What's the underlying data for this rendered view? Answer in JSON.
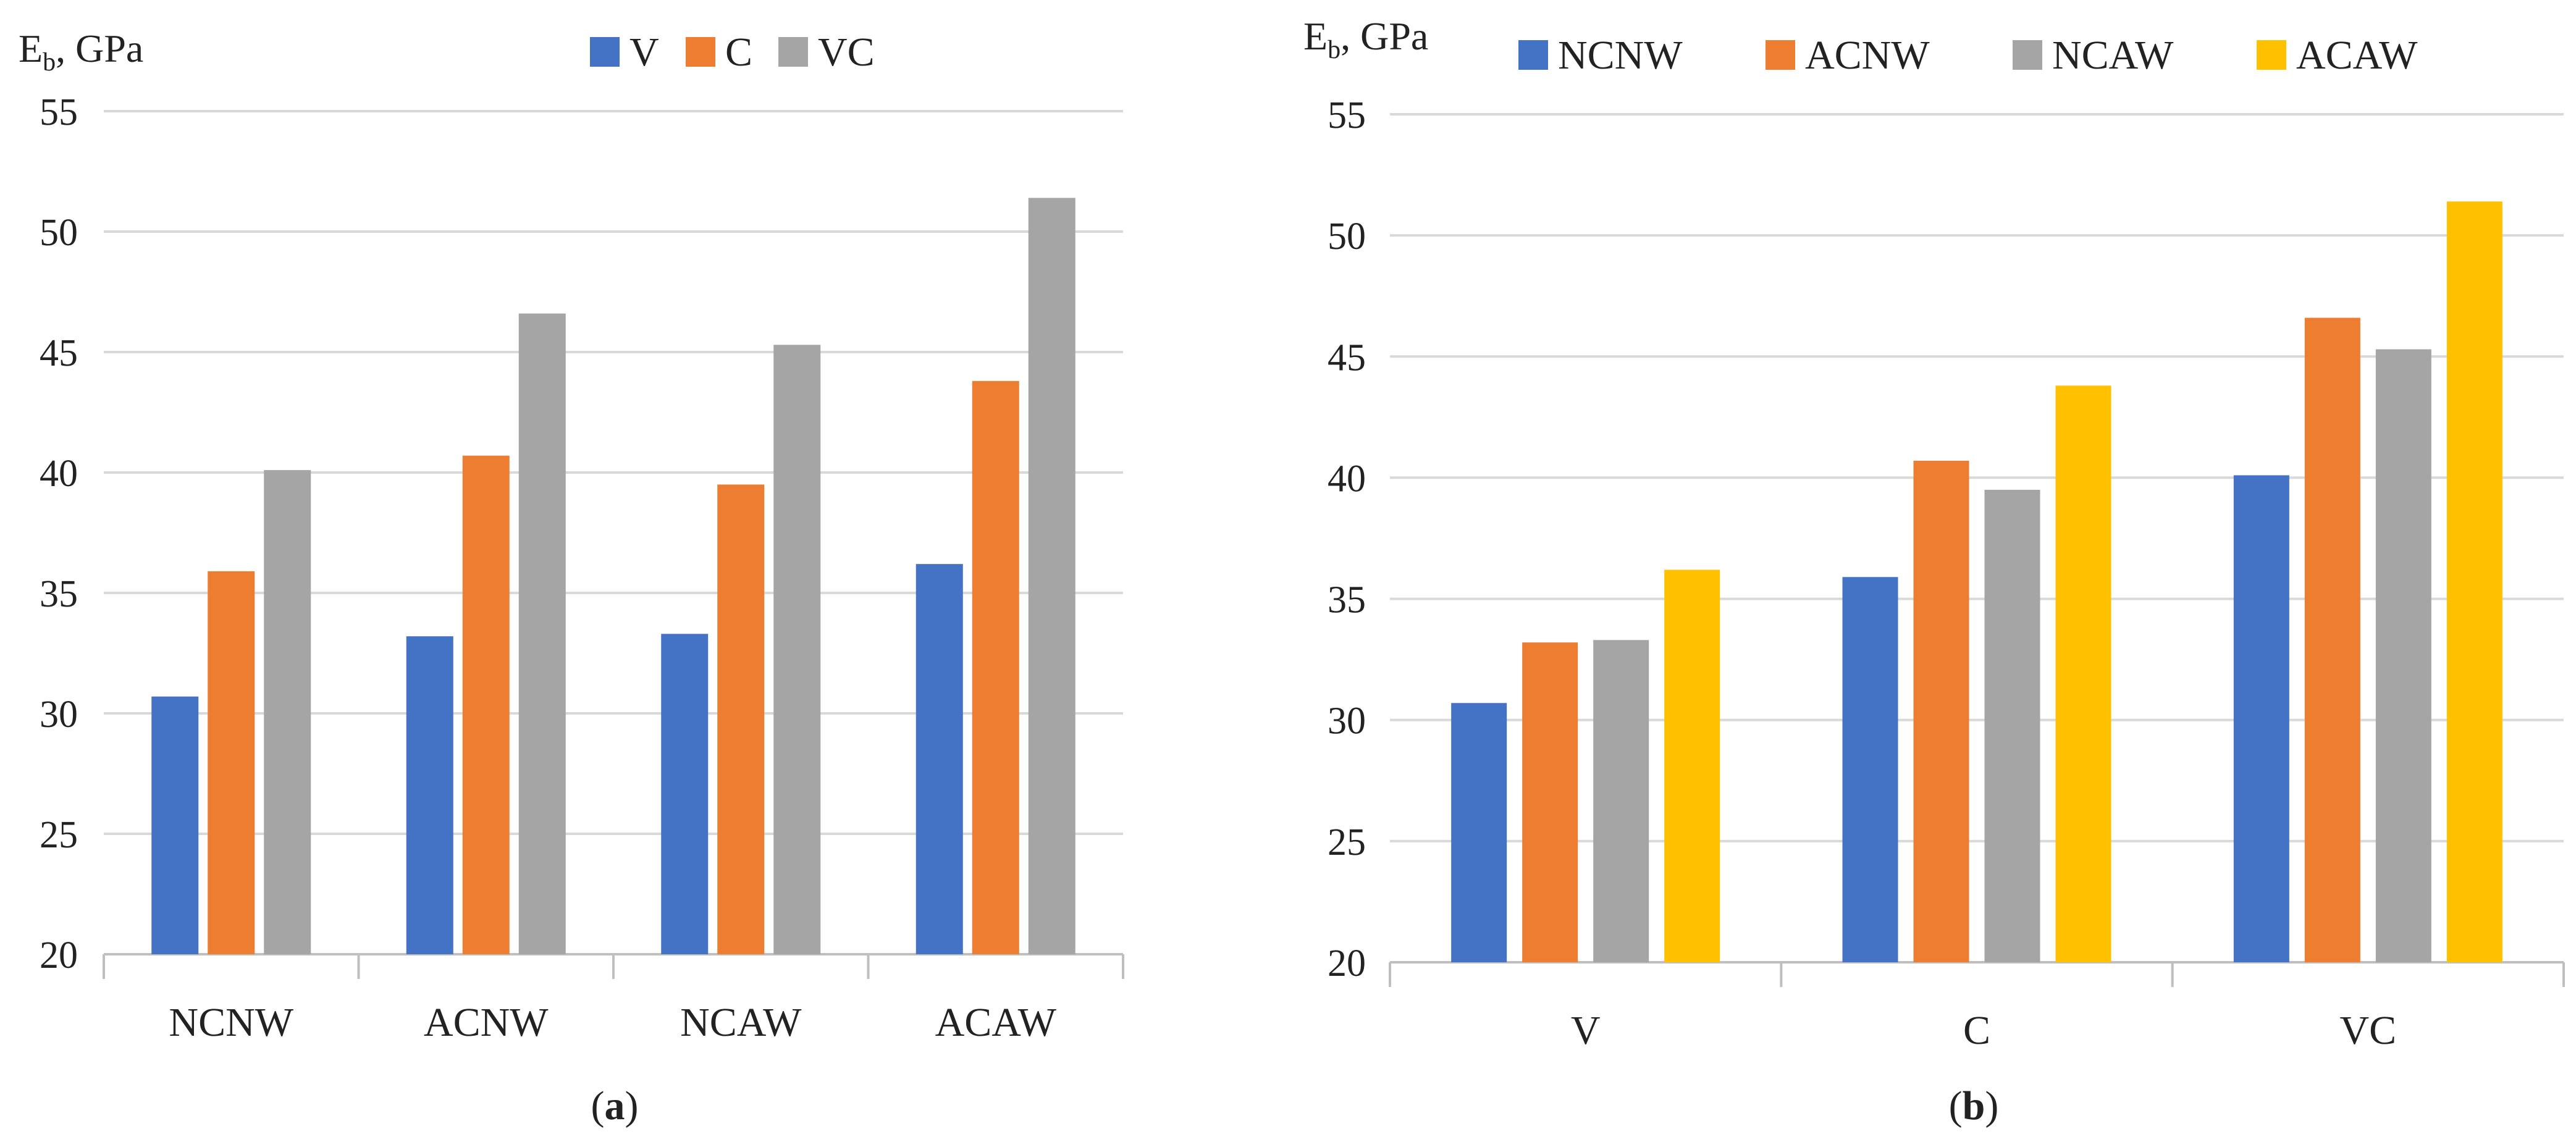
{
  "colors": {
    "V": "#4472C4",
    "C": "#ED7D31",
    "VC": "#A5A5A5",
    "NCNW": "#4472C4",
    "ACNW": "#ED7D31",
    "NCAW": "#A5A5A5",
    "ACAW": "#FFC000",
    "grid": "#D9D9D9",
    "axis": "#BFBFBF"
  },
  "chart_data": [
    {
      "id": "a",
      "type": "bar",
      "panel_label": "a",
      "ylabel_main": "E",
      "ylabel_sub": "b",
      "ylabel_unit": ", GPa",
      "categories": [
        "NCNW",
        "ACNW",
        "NCAW",
        "ACAW"
      ],
      "series": [
        {
          "name": "V",
          "values": [
            30.7,
            33.2,
            33.3,
            36.2
          ]
        },
        {
          "name": "C",
          "values": [
            35.9,
            40.7,
            39.5,
            43.8
          ]
        },
        {
          "name": "VC",
          "values": [
            40.1,
            46.6,
            45.3,
            51.4
          ]
        }
      ],
      "ylim": [
        20,
        55
      ],
      "yticks": [
        "20",
        "25",
        "30",
        "35",
        "40",
        "45",
        "50",
        "55"
      ],
      "grid": true,
      "legend_position": "top"
    },
    {
      "id": "b",
      "type": "bar",
      "panel_label": "b",
      "ylabel_main": "E",
      "ylabel_sub": "b",
      "ylabel_unit": ", GPa",
      "categories": [
        "V",
        "C",
        "VC"
      ],
      "series": [
        {
          "name": "NCNW",
          "values": [
            30.7,
            35.9,
            40.1
          ]
        },
        {
          "name": "ACNW",
          "values": [
            33.2,
            40.7,
            46.6
          ]
        },
        {
          "name": "NCAW",
          "values": [
            33.3,
            39.5,
            45.3
          ]
        },
        {
          "name": "ACAW",
          "values": [
            36.2,
            43.8,
            51.4
          ]
        }
      ],
      "ylim": [
        20,
        55
      ],
      "yticks": [
        "20",
        "25",
        "30",
        "35",
        "40",
        "45",
        "50",
        "55"
      ],
      "grid": true,
      "legend_position": "top"
    }
  ]
}
